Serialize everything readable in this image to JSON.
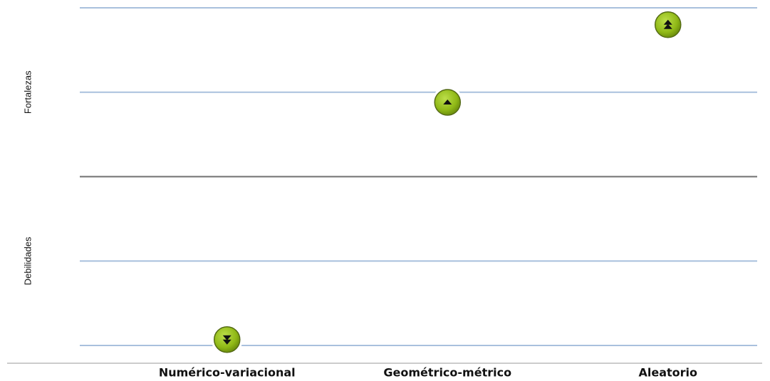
{
  "chart_data": {
    "type": "dot",
    "y_labels": [
      "Fortalezas",
      "Debilidades"
    ],
    "categories": [
      "Numérico-variacional",
      "Geométrico-métrico",
      "Aleatorio"
    ],
    "values": [
      -1.93,
      0.88,
      1.8
    ],
    "ylim": [
      -2,
      2
    ],
    "yticks": [
      -2,
      -1,
      0,
      1,
      2
    ],
    "grid": true,
    "color": "#9ac21c"
  }
}
